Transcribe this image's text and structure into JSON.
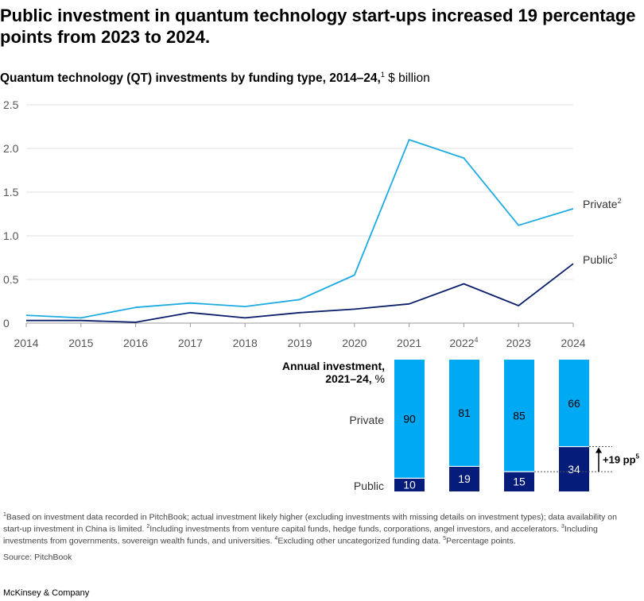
{
  "headline": "Public investment in quantum technology start-ups increased 19 percentage points from 2023 to 2024.",
  "subtitle": {
    "bold": "Quantum technology (QT) investments by funding type, 2014–24,",
    "sup": "1",
    "unit": " $ billion"
  },
  "colors": {
    "private": "#1eabe3",
    "public": "#0a1e6b",
    "private_bar": "#00a9f4",
    "public_bar": "#051c7b",
    "grid": "#e2e2e2",
    "axis": "#9a9a9a"
  },
  "chart_data": [
    {
      "type": "line",
      "x": [
        "2014",
        "2015",
        "2016",
        "2017",
        "2018",
        "2019",
        "2020",
        "2021",
        "2022",
        "2023",
        "2024"
      ],
      "x_sup": [
        "",
        "",
        "",
        "",
        "",
        "",
        "",
        "",
        "4",
        "",
        ""
      ],
      "ylim": [
        0,
        2.5
      ],
      "yticks": [
        "0",
        "0.5",
        "1.0",
        "1.5",
        "2.0",
        "2.5"
      ],
      "grid": true,
      "series": [
        {
          "name": "Private",
          "sup": "2",
          "values": [
            0.09,
            0.06,
            0.18,
            0.23,
            0.19,
            0.27,
            0.55,
            2.1,
            1.89,
            1.12,
            1.31
          ]
        },
        {
          "name": "Public",
          "sup": "3",
          "values": [
            0.03,
            0.03,
            0.01,
            0.12,
            0.06,
            0.12,
            0.16,
            0.22,
            0.45,
            0.2,
            0.68
          ]
        }
      ]
    },
    {
      "type": "bar",
      "stacked": true,
      "title": "Annual investment,",
      "title2": "2021–24,",
      "unit": " %",
      "categories": [
        "2021",
        "2022",
        "2023",
        "2024"
      ],
      "series": [
        {
          "name": "Private",
          "values": [
            90,
            81,
            85,
            66
          ]
        },
        {
          "name": "Public",
          "values": [
            10,
            19,
            15,
            34
          ]
        }
      ],
      "annotation": {
        "text": "+19 pp",
        "sup": "5"
      }
    }
  ],
  "footnotes": {
    "n1_sup": "1",
    "n1": "Based on investment data recorded in PitchBook; actual investment likely higher (excluding investments with missing details on investment types); data availability on start-up investment in China is limited. ",
    "n2_sup": "2",
    "n2": "Including investments from venture capital funds, hedge funds, corporations, angel investors, and accelerators. ",
    "n3_sup": "3",
    "n3": "Including investments from governments, sovereign wealth funds, and universities. ",
    "n4_sup": "4",
    "n4": "Excluding other uncategorized funding data. ",
    "n5_sup": "5",
    "n5": "Percentage points."
  },
  "source": "Source: PitchBook",
  "brand": "McKinsey & Company"
}
